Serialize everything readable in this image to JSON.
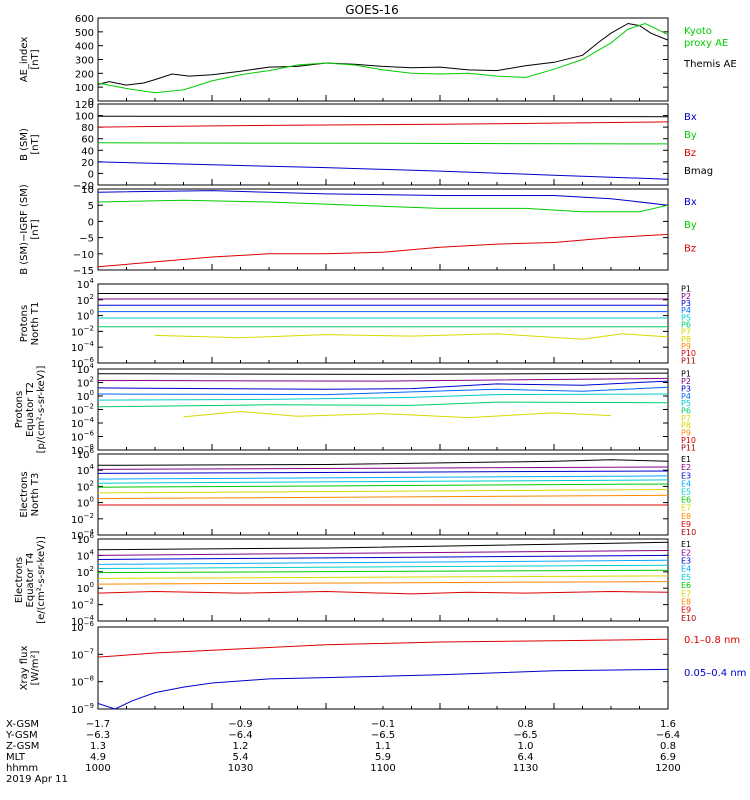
{
  "title": "GOES-16",
  "colors": {
    "black": "#000000",
    "red": "#dd0000",
    "green": "#00cc00",
    "blue": "#0000cc",
    "yellow": "#d8d800",
    "cyan": "#00cccc",
    "orange": "#ff8800"
  },
  "chart_data": [
    {
      "type": "line",
      "ylabel": "AE_index\n[nT]",
      "ylim": [
        0,
        600
      ],
      "yticks": [
        "0",
        "100",
        "200",
        "300",
        "400",
        "500",
        "600"
      ],
      "legend": [
        {
          "text": "Kyoto\nproxy AE",
          "color": "#00cc00"
        },
        {
          "text": "Themis AE",
          "color": "#000000"
        }
      ],
      "series": [
        {
          "name": "Themis AE",
          "color": "#000000",
          "x": [
            0,
            2,
            5,
            8,
            10,
            13,
            16,
            20,
            25,
            30,
            35,
            40,
            45,
            50,
            55,
            60,
            65,
            70,
            75,
            80,
            85,
            88,
            90,
            93,
            95,
            97,
            100
          ],
          "y": [
            120,
            140,
            115,
            130,
            155,
            195,
            180,
            190,
            215,
            245,
            250,
            275,
            265,
            250,
            240,
            245,
            225,
            220,
            255,
            280,
            330,
            430,
            490,
            560,
            545,
            490,
            440
          ]
        },
        {
          "name": "Kyoto proxy AE",
          "color": "#00cc00",
          "x": [
            0,
            5,
            10,
            15,
            20,
            25,
            30,
            35,
            40,
            45,
            50,
            55,
            60,
            65,
            70,
            75,
            80,
            85,
            90,
            93,
            96,
            100
          ],
          "y": [
            130,
            90,
            60,
            80,
            145,
            190,
            220,
            260,
            275,
            260,
            225,
            200,
            195,
            200,
            180,
            170,
            230,
            300,
            420,
            520,
            560,
            480
          ]
        }
      ]
    },
    {
      "type": "line",
      "ylabel": "B (SM)\n[nT]",
      "ylim": [
        -20,
        120
      ],
      "yticks": [
        "−20",
        "0",
        "20",
        "40",
        "60",
        "80",
        "100",
        "120"
      ],
      "legend": [
        {
          "text": "Bx",
          "color": "#0000cc"
        },
        {
          "text": "By",
          "color": "#00cc00"
        },
        {
          "text": "Bz",
          "color": "#dd0000"
        },
        {
          "text": "Bmag",
          "color": "#000000"
        }
      ],
      "series": [
        {
          "name": "Bmag",
          "color": "#000000",
          "x": [
            0,
            100
          ],
          "y": [
            99,
            98
          ]
        },
        {
          "name": "Bz",
          "color": "#dd0000",
          "x": [
            0,
            30,
            60,
            80,
            100
          ],
          "y": [
            80,
            83,
            85,
            87,
            89
          ]
        },
        {
          "name": "By",
          "color": "#00cc00",
          "x": [
            0,
            50,
            100
          ],
          "y": [
            53,
            52,
            51
          ]
        },
        {
          "name": "Bx",
          "color": "#0000cc",
          "x": [
            0,
            20,
            40,
            60,
            80,
            100
          ],
          "y": [
            20,
            15,
            10,
            4,
            -3,
            -10
          ]
        }
      ]
    },
    {
      "type": "line",
      "ylabel": "B (SM)−IGRF (SM)\n[nT]",
      "ylim": [
        -15,
        10
      ],
      "yticks": [
        "−15",
        "−10",
        "−5",
        "0",
        "5",
        "10"
      ],
      "legend": [
        {
          "text": "Bx",
          "color": "#0000cc"
        },
        {
          "text": "By",
          "color": "#00cc00"
        },
        {
          "text": "Bz",
          "color": "#dd0000"
        }
      ],
      "series": [
        {
          "name": "Bx",
          "color": "#0000cc",
          "x": [
            0,
            20,
            40,
            60,
            80,
            90,
            100
          ],
          "y": [
            9,
            9.5,
            8.5,
            8,
            8,
            7,
            5
          ]
        },
        {
          "name": "By",
          "color": "#00cc00",
          "x": [
            0,
            15,
            30,
            45,
            60,
            75,
            85,
            95,
            100
          ],
          "y": [
            6,
            6.5,
            6,
            5,
            4,
            4,
            3,
            3,
            5
          ]
        },
        {
          "name": "Bz",
          "color": "#dd0000",
          "x": [
            0,
            10,
            20,
            30,
            40,
            50,
            60,
            70,
            80,
            90,
            100
          ],
          "y": [
            -14,
            -12.5,
            -11,
            -10,
            -10,
            -9.5,
            -8,
            -7,
            -6.5,
            -5,
            -4
          ]
        }
      ]
    },
    {
      "type": "line",
      "ylabel": "Protons\nNorth T1",
      "yticks": [
        "10^4",
        "10^2",
        "10^0",
        "10^-2",
        "10^-4",
        "10^-6"
      ],
      "ylog": [
        -6,
        4
      ],
      "legend": [
        {
          "text": "P1",
          "color": "#000000"
        },
        {
          "text": "P2",
          "color": "#880088"
        },
        {
          "text": "P3",
          "color": "#0000cc"
        },
        {
          "text": "P4",
          "color": "#0066ff"
        },
        {
          "text": "P5",
          "color": "#00cccc"
        },
        {
          "text": "P6",
          "color": "#00cc66"
        },
        {
          "text": "P7",
          "color": "#d8d800"
        },
        {
          "text": "P8",
          "color": "#d8d800"
        },
        {
          "text": "P9",
          "color": "#ff8800"
        },
        {
          "text": "P10",
          "color": "#dd0000"
        },
        {
          "text": "P11",
          "color": "#aa0000"
        }
      ],
      "series": [
        {
          "name": "P1",
          "color": "#000000",
          "x": [
            0,
            100
          ],
          "y": [
            2.8,
            2.8
          ]
        },
        {
          "name": "P2",
          "color": "#880088",
          "x": [
            0,
            100
          ],
          "y": [
            2.1,
            2.1
          ]
        },
        {
          "name": "P3",
          "color": "#0000cc",
          "x": [
            0,
            100
          ],
          "y": [
            1.3,
            1.3
          ]
        },
        {
          "name": "P4",
          "color": "#0066ff",
          "x": [
            0,
            100
          ],
          "y": [
            0.5,
            0.5
          ]
        },
        {
          "name": "P5",
          "color": "#00cccc",
          "x": [
            0,
            100
          ],
          "y": [
            -0.3,
            -0.3
          ]
        },
        {
          "name": "P6",
          "color": "#00cc66",
          "x": [
            0,
            100
          ],
          "y": [
            -1.4,
            -1.4
          ]
        },
        {
          "name": "P7",
          "color": "#d8d800",
          "x": [
            10,
            25,
            40,
            55,
            70,
            85,
            92,
            100
          ],
          "y": [
            -2.5,
            -2.8,
            -2.4,
            -2.6,
            -2.3,
            -3.0,
            -2.3,
            -2.7
          ]
        }
      ]
    },
    {
      "type": "line",
      "ylabel": "Protons\nEquator T2\n[p/(cm²-s-sr-keV)]",
      "yticks": [
        "10^4",
        "10^2",
        "10^0",
        "10^-2",
        "10^-4",
        "10^-6",
        "10^-8"
      ],
      "ylog": [
        -8,
        4
      ],
      "legend": [
        {
          "text": "P1",
          "color": "#000000"
        },
        {
          "text": "P2",
          "color": "#880088"
        },
        {
          "text": "P3",
          "color": "#0000cc"
        },
        {
          "text": "P4",
          "color": "#0066ff"
        },
        {
          "text": "P5",
          "color": "#00cccc"
        },
        {
          "text": "P6",
          "color": "#00cc66"
        },
        {
          "text": "P7",
          "color": "#d8d800"
        },
        {
          "text": "P8",
          "color": "#d8d800"
        },
        {
          "text": "P9",
          "color": "#ff8800"
        },
        {
          "text": "P10",
          "color": "#dd0000"
        },
        {
          "text": "P11",
          "color": "#aa0000"
        }
      ],
      "series": [
        {
          "name": "P1",
          "color": "#000000",
          "x": [
            0,
            50,
            100
          ],
          "y": [
            3.3,
            3.2,
            3.4
          ]
        },
        {
          "name": "P2",
          "color": "#880088",
          "x": [
            0,
            50,
            100
          ],
          "y": [
            2.3,
            2.2,
            2.6
          ]
        },
        {
          "name": "P3",
          "color": "#0000cc",
          "x": [
            0,
            40,
            55,
            70,
            85,
            100
          ],
          "y": [
            1.2,
            1.0,
            1.1,
            1.8,
            1.6,
            2.2
          ]
        },
        {
          "name": "P4",
          "color": "#0066ff",
          "x": [
            0,
            40,
            55,
            70,
            85,
            100
          ],
          "y": [
            0.3,
            0.2,
            0.6,
            1.0,
            0.7,
            1.3
          ]
        },
        {
          "name": "P5",
          "color": "#00cccc",
          "x": [
            0,
            30,
            55,
            70,
            100
          ],
          "y": [
            -0.6,
            -0.5,
            -0.2,
            0.2,
            0.3
          ]
        },
        {
          "name": "P6",
          "color": "#00cc66",
          "x": [
            0,
            30,
            55,
            70,
            100
          ],
          "y": [
            -1.6,
            -1.3,
            -1.4,
            -0.9,
            -1.0
          ]
        },
        {
          "name": "P7",
          "color": "#d8d800",
          "x": [
            15,
            25,
            35,
            50,
            65,
            80,
            90
          ],
          "y": [
            -3.1,
            -2.3,
            -3.0,
            -2.6,
            -3.2,
            -2.5,
            -2.9
          ]
        }
      ]
    },
    {
      "type": "line",
      "ylabel": "Electrons\nNorth T3",
      "yticks": [
        "10^6",
        "10^4",
        "10^2",
        "10^0",
        "10^-2",
        "10^-4"
      ],
      "ylog": [
        -4,
        6
      ],
      "legend": [
        {
          "text": "E1",
          "color": "#000000"
        },
        {
          "text": "E2",
          "color": "#880088"
        },
        {
          "text": "E3",
          "color": "#0000cc"
        },
        {
          "text": "E4",
          "color": "#00aaff"
        },
        {
          "text": "E5",
          "color": "#00cccc"
        },
        {
          "text": "E6",
          "color": "#00cc00"
        },
        {
          "text": "E7",
          "color": "#d8d800"
        },
        {
          "text": "E8",
          "color": "#ff8800"
        },
        {
          "text": "E9",
          "color": "#dd0000"
        },
        {
          "text": "E10",
          "color": "#aa0000"
        }
      ],
      "series": [
        {
          "name": "E1",
          "color": "#000000",
          "x": [
            0,
            40,
            80,
            90,
            100
          ],
          "y": [
            4.6,
            4.7,
            5.1,
            5.3,
            5.1
          ]
        },
        {
          "name": "E2",
          "color": "#880088",
          "x": [
            0,
            100
          ],
          "y": [
            4.1,
            4.4
          ]
        },
        {
          "name": "E3",
          "color": "#0000cc",
          "x": [
            0,
            100
          ],
          "y": [
            3.6,
            3.9
          ]
        },
        {
          "name": "E4",
          "color": "#00aaff",
          "x": [
            0,
            100
          ],
          "y": [
            2.9,
            3.3
          ]
        },
        {
          "name": "E5",
          "color": "#00cccc",
          "x": [
            0,
            100
          ],
          "y": [
            2.4,
            2.8
          ]
        },
        {
          "name": "E6",
          "color": "#00cc00",
          "x": [
            0,
            100
          ],
          "y": [
            1.9,
            2.3
          ]
        },
        {
          "name": "E7",
          "color": "#d8d800",
          "x": [
            0,
            100
          ],
          "y": [
            1.2,
            1.6
          ]
        },
        {
          "name": "E8",
          "color": "#ff8800",
          "x": [
            0,
            100
          ],
          "y": [
            0.5,
            0.9
          ]
        },
        {
          "name": "E9",
          "color": "#dd0000",
          "x": [
            0,
            100
          ],
          "y": [
            -0.3,
            -0.3
          ]
        }
      ]
    },
    {
      "type": "line",
      "ylabel": "Electrons\nEquator T4\n[e/(cm²-s-sr-keV)]",
      "yticks": [
        "10^6",
        "10^4",
        "10^2",
        "10^0",
        "10^-2",
        "10^-4"
      ],
      "ylog": [
        -4,
        6
      ],
      "legend": [
        {
          "text": "E1",
          "color": "#000000"
        },
        {
          "text": "E2",
          "color": "#880088"
        },
        {
          "text": "E3",
          "color": "#0000cc"
        },
        {
          "text": "E4",
          "color": "#00aaff"
        },
        {
          "text": "E5",
          "color": "#00cccc"
        },
        {
          "text": "E6",
          "color": "#00cc00"
        },
        {
          "text": "E7",
          "color": "#d8d800"
        },
        {
          "text": "E8",
          "color": "#ff8800"
        },
        {
          "text": "E9",
          "color": "#dd0000"
        },
        {
          "text": "E10",
          "color": "#aa0000"
        }
      ],
      "series": [
        {
          "name": "E1",
          "color": "#000000",
          "x": [
            0,
            40,
            100
          ],
          "y": [
            4.7,
            4.9,
            5.6
          ]
        },
        {
          "name": "E2",
          "color": "#880088",
          "x": [
            0,
            100
          ],
          "y": [
            4.0,
            4.6
          ]
        },
        {
          "name": "E3",
          "color": "#0000cc",
          "x": [
            0,
            100
          ],
          "y": [
            3.5,
            4.0
          ]
        },
        {
          "name": "E4",
          "color": "#00aaff",
          "x": [
            0,
            100
          ],
          "y": [
            2.9,
            3.4
          ]
        },
        {
          "name": "E5",
          "color": "#00cccc",
          "x": [
            0,
            100
          ],
          "y": [
            2.4,
            2.8
          ]
        },
        {
          "name": "E6",
          "color": "#00cc00",
          "x": [
            0,
            100
          ],
          "y": [
            1.9,
            2.2
          ]
        },
        {
          "name": "E7",
          "color": "#d8d800",
          "x": [
            0,
            100
          ],
          "y": [
            1.2,
            1.5
          ]
        },
        {
          "name": "E8",
          "color": "#ff8800",
          "x": [
            0,
            100
          ],
          "y": [
            0.5,
            0.8
          ]
        },
        {
          "name": "E9",
          "color": "#dd0000",
          "x": [
            0,
            10,
            25,
            40,
            55,
            65,
            75,
            90,
            100
          ],
          "y": [
            -0.6,
            -0.4,
            -0.6,
            -0.4,
            -0.7,
            -0.5,
            -0.6,
            -0.4,
            -0.5
          ]
        }
      ]
    },
    {
      "type": "line",
      "ylabel": "Xray flux\n[W/m²]",
      "yticks": [
        "10^-6",
        "10^-7",
        "10^-8",
        "10^-9"
      ],
      "ylog": [
        -9,
        -6
      ],
      "legend": [
        {
          "text": "0.1–0.8 nm",
          "color": "#dd0000"
        },
        {
          "text": "0.05–0.4 nm",
          "color": "#0000cc"
        }
      ],
      "series": [
        {
          "name": "0.1–0.8 nm",
          "color": "#dd0000",
          "x": [
            0,
            10,
            20,
            30,
            40,
            60,
            80,
            100
          ],
          "y": [
            -7.1,
            -6.95,
            -6.85,
            -6.75,
            -6.65,
            -6.55,
            -6.5,
            -6.45
          ]
        },
        {
          "name": "0.05–0.4 nm",
          "color": "#0000cc",
          "x": [
            0,
            3,
            6,
            10,
            15,
            20,
            30,
            40,
            60,
            80,
            100
          ],
          "y": [
            -8.8,
            -9.0,
            -8.7,
            -8.4,
            -8.2,
            -8.05,
            -7.9,
            -7.85,
            -7.75,
            -7.6,
            -7.55
          ]
        }
      ]
    }
  ],
  "orbit_table": {
    "row_labels": [
      "X-GSM",
      "Y-GSM",
      "Z-GSM",
      "MLT",
      "hhmm",
      "2019 Apr 11"
    ],
    "columns": [
      [
        "−1.7",
        "−6.3",
        "1.3",
        "4.9",
        "1000"
      ],
      [
        "−0.9",
        "−6.4",
        "1.2",
        "5.4",
        "1030"
      ],
      [
        "−0.1",
        "−6.5",
        "1.1",
        "5.9",
        "1100"
      ],
      [
        "0.8",
        "−6.5",
        "1.0",
        "6.4",
        "1130"
      ],
      [
        "1.6",
        "−6.4",
        "0.8",
        "6.9",
        "1200"
      ]
    ]
  }
}
